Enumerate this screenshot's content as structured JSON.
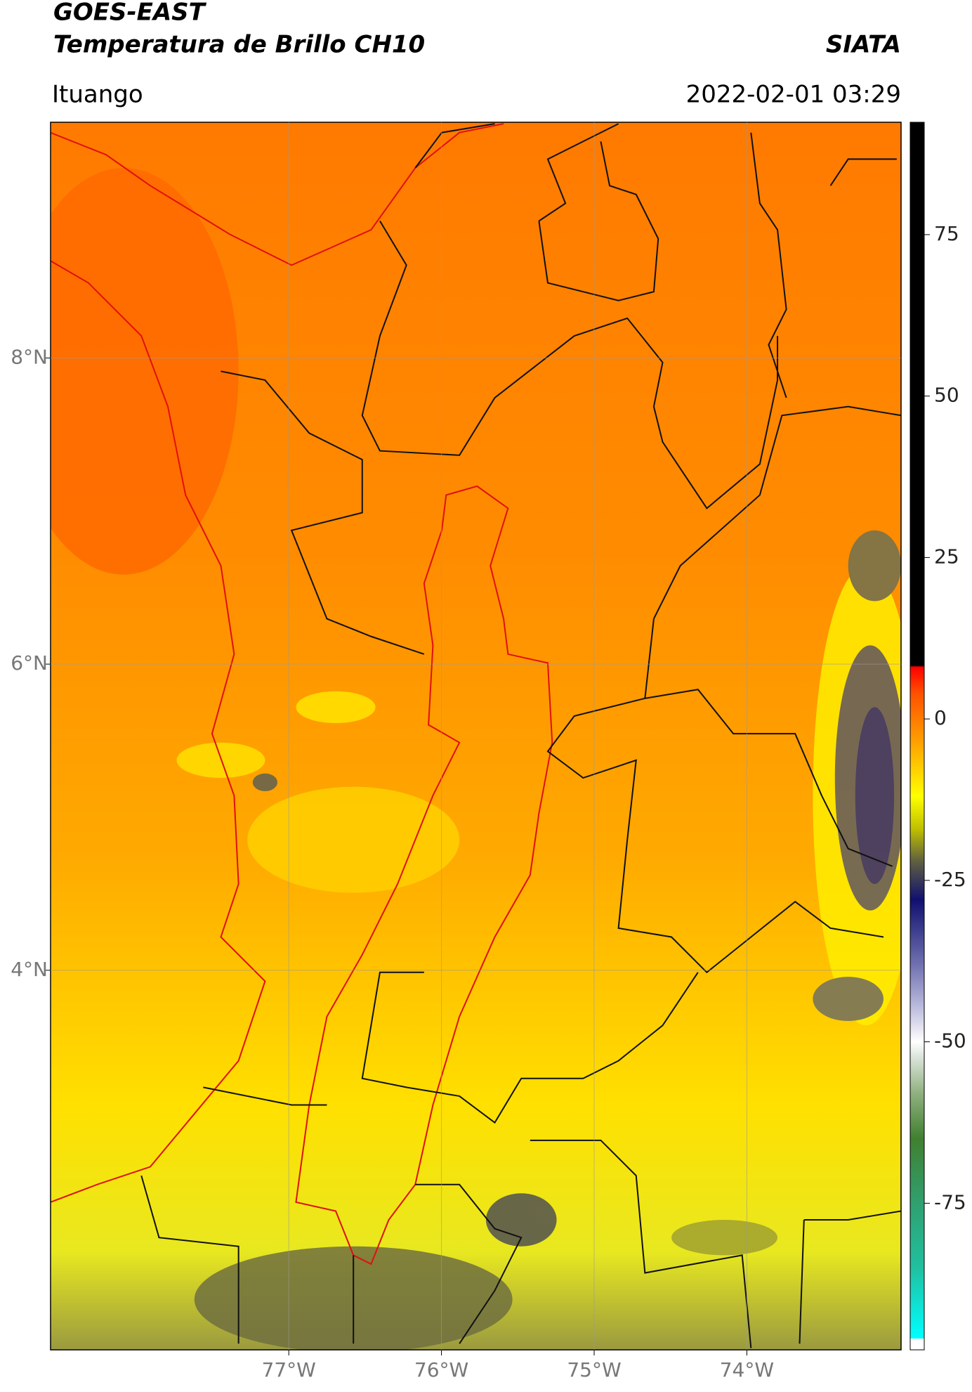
{
  "title": "GOES-EAST",
  "subtitle": "Temperatura de Brillo CH10",
  "source": "SIATA",
  "location": "Ituango",
  "datetime": "2022-02-01 03:29",
  "xlim": [
    -78.56,
    -72.99
  ],
  "ylim": [
    1.52,
    9.54
  ],
  "xticks": [
    {
      "value": -77,
      "label": "77°W"
    },
    {
      "value": -76,
      "label": "76°W"
    },
    {
      "value": -75,
      "label": "75°W"
    },
    {
      "value": -74,
      "label": "74°W"
    }
  ],
  "yticks": [
    {
      "value": 4,
      "label": "4°N"
    },
    {
      "value": 6,
      "label": "6°N"
    },
    {
      "value": 8,
      "label": "8°N"
    }
  ],
  "grid": true,
  "colorbar": {
    "clim": [
      -97.7,
      92.4
    ],
    "ticks": [
      -75,
      -50,
      -25,
      0,
      25,
      50,
      75
    ],
    "stops": [
      [
        -97.7,
        "#ffffff"
      ],
      [
        -96,
        "#ffffff"
      ],
      [
        -95.9,
        "#00ffff"
      ],
      [
        -85,
        "#20c0a0"
      ],
      [
        -75,
        "#30a070"
      ],
      [
        -65,
        "#408030"
      ],
      [
        -58,
        "#90b080"
      ],
      [
        -52,
        "#e0e8e0"
      ],
      [
        -50,
        "#ffffff"
      ],
      [
        -45,
        "#c0c0e0"
      ],
      [
        -38,
        "#7070b0"
      ],
      [
        -28,
        "#101070"
      ],
      [
        -22,
        "#606040"
      ],
      [
        -17,
        "#c0c000"
      ],
      [
        -12,
        "#ffff00"
      ],
      [
        -4,
        "#ffa500"
      ],
      [
        4,
        "#ff5000"
      ],
      [
        8,
        "#ff0000"
      ],
      [
        8.3,
        "#000000"
      ],
      [
        92.4,
        "#000000"
      ]
    ]
  }
}
